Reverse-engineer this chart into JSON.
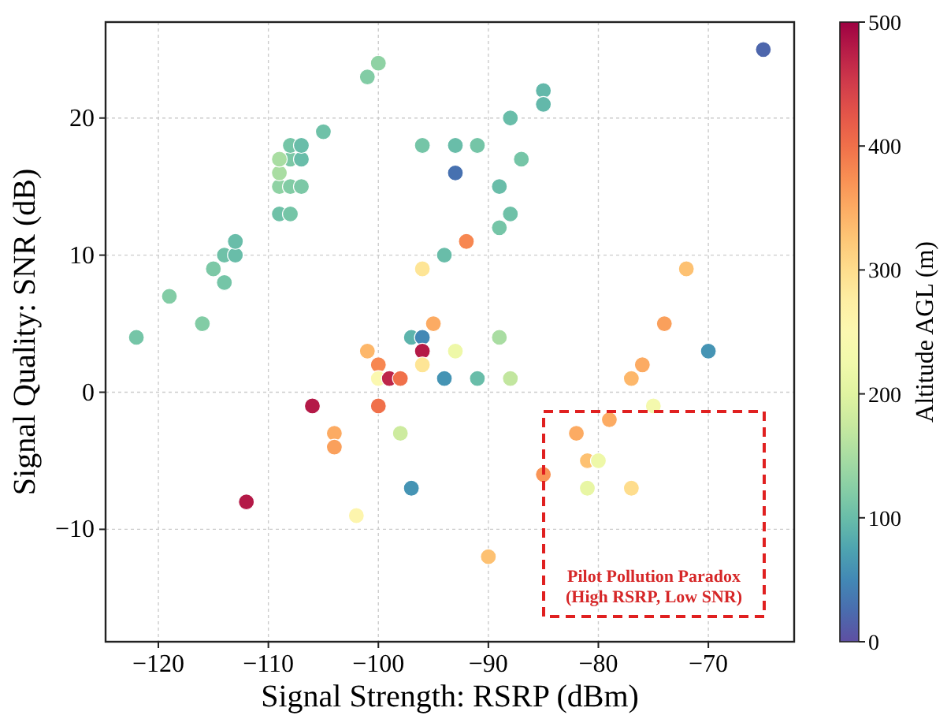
{
  "chart_data": {
    "type": "scatter",
    "xlabel": "Signal Strength: RSRP (dBm)",
    "ylabel": "Signal Quality: SNR (dB)",
    "clabel": "Altitude AGL (m)",
    "xlim": [
      -124.8,
      -62.2
    ],
    "ylim": [
      -18.2,
      27
    ],
    "xticks": [
      -120,
      -110,
      -100,
      -90,
      -80,
      -70
    ],
    "yticks": [
      -10,
      0,
      10,
      20
    ],
    "clim": [
      0,
      500
    ],
    "cticks": [
      0,
      100,
      200,
      300,
      400,
      500
    ],
    "grid": true,
    "marker": "circle",
    "x": [
      -122,
      -119,
      -116,
      -115,
      -114,
      -114,
      -113,
      -113,
      -109,
      -108,
      -109,
      -108,
      -107,
      -109,
      -108,
      -109,
      -107,
      -108,
      -107,
      -105,
      -101,
      -100,
      -96,
      -93,
      -91,
      -88,
      -85,
      -85,
      -87,
      -89,
      -88,
      -89,
      -94,
      -93,
      -65,
      -92,
      -96,
      -97,
      -96,
      -95,
      -96,
      -93,
      -101,
      -100,
      -96,
      -100,
      -99,
      -98,
      -94,
      -91,
      -88,
      -89,
      -106,
      -100,
      -104,
      -104,
      -98,
      -97,
      -112,
      -102,
      -90,
      -74,
      -70,
      -76,
      -77,
      -75,
      -79,
      -82,
      -85,
      -81,
      -80,
      -81,
      -77,
      -72
    ],
    "values": [
      4,
      7,
      5,
      9,
      8,
      10,
      10,
      11,
      13,
      13,
      15,
      15,
      15,
      16,
      17,
      17,
      17,
      18,
      18,
      19,
      23,
      24,
      18,
      18,
      18,
      20,
      22,
      21,
      17,
      15,
      13,
      12,
      10,
      16,
      25,
      11,
      9,
      4,
      4,
      5,
      3,
      3,
      3,
      2,
      2,
      1,
      1,
      1,
      1,
      1,
      1,
      4,
      -1,
      -1,
      -3,
      -4,
      -3,
      -7,
      -8,
      -9,
      -12,
      5,
      3,
      2,
      1,
      -1,
      -2,
      -3,
      -6,
      -5,
      -5,
      -7,
      -7,
      9
    ],
    "cvalues": [
      110,
      120,
      120,
      115,
      110,
      105,
      100,
      100,
      105,
      110,
      130,
      120,
      115,
      150,
      115,
      150,
      100,
      110,
      100,
      105,
      120,
      130,
      110,
      100,
      110,
      100,
      95,
      95,
      110,
      100,
      105,
      110,
      100,
      30,
      20,
      380,
      290,
      90,
      50,
      350,
      480,
      220,
      340,
      380,
      290,
      250,
      470,
      400,
      60,
      100,
      170,
      150,
      480,
      400,
      350,
      360,
      180,
      60,
      480,
      260,
      330,
      360,
      60,
      350,
      340,
      230,
      350,
      350,
      370,
      330,
      220,
      210,
      300,
      330
    ],
    "annotations": [
      "Pilot Pollution Paradox\n(High RSRP, Low SNR)"
    ]
  }
}
